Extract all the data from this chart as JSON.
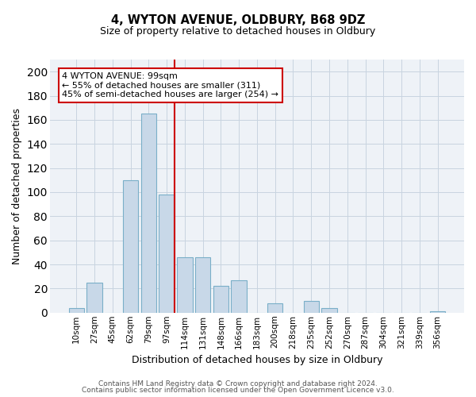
{
  "title1": "4, WYTON AVENUE, OLDBURY, B68 9DZ",
  "title2": "Size of property relative to detached houses in Oldbury",
  "xlabel": "Distribution of detached houses by size in Oldbury",
  "ylabel": "Number of detached properties",
  "bar_labels": [
    "10sqm",
    "27sqm",
    "45sqm",
    "62sqm",
    "79sqm",
    "97sqm",
    "114sqm",
    "131sqm",
    "148sqm",
    "166sqm",
    "183sqm",
    "200sqm",
    "218sqm",
    "235sqm",
    "252sqm",
    "270sqm",
    "287sqm",
    "304sqm",
    "321sqm",
    "339sqm",
    "356sqm"
  ],
  "bar_values": [
    4,
    25,
    0,
    110,
    165,
    98,
    46,
    46,
    22,
    27,
    0,
    8,
    0,
    10,
    4,
    0,
    0,
    0,
    0,
    0,
    1
  ],
  "bar_color": "#c8d8e8",
  "bar_edgecolor": "#7aafc8",
  "annotation_property": "4 WYTON AVENUE: 99sqm",
  "annotation_line1": "← 55% of detached houses are smaller (311)",
  "annotation_line2": "45% of semi-detached houses are larger (254) →",
  "marker_line_color": "#cc0000",
  "ylim": [
    0,
    210
  ],
  "yticks": [
    0,
    20,
    40,
    60,
    80,
    100,
    120,
    140,
    160,
    180,
    200
  ],
  "grid_color": "#c8d4e0",
  "background_color": "#eef2f7",
  "footnote1": "Contains HM Land Registry data © Crown copyright and database right 2024.",
  "footnote2": "Contains public sector information licensed under the Open Government Licence v3.0."
}
